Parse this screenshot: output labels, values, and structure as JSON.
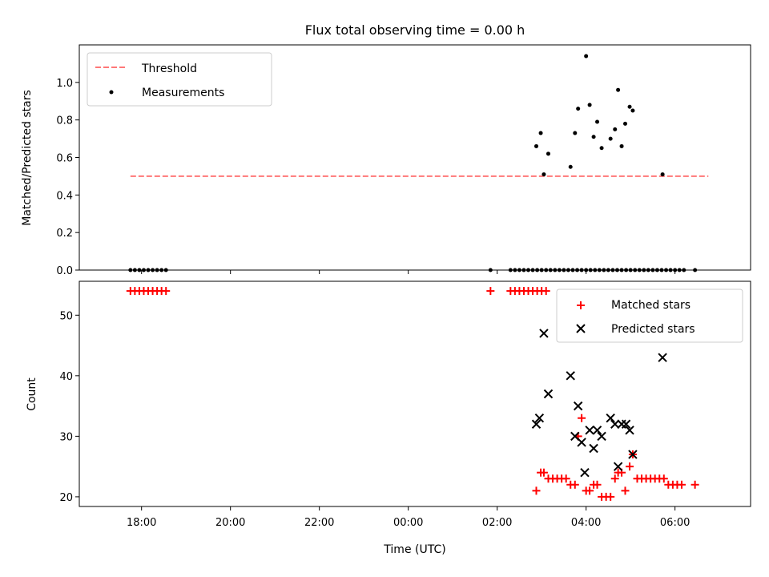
{
  "chart_data": [
    {
      "type": "scatter",
      "title": "Flux total observing time = 0.00 h",
      "xlabel": "",
      "ylabel": "Matched/Predicted stars",
      "x_unit": "hours",
      "xlim": [
        -1.4,
        13.7
      ],
      "ylim": [
        0,
        1.2
      ],
      "yticks": [
        0.0,
        0.2,
        0.4,
        0.6,
        0.8,
        1.0
      ],
      "ytick_labels": [
        "0.0",
        "0.2",
        "0.4",
        "0.6",
        "0.8",
        "1.0"
      ],
      "legend_position": "upper left",
      "legend": [
        "Threshold",
        "Measurements"
      ],
      "threshold": {
        "name": "Threshold",
        "value": 0.5,
        "x_range": [
          -0.25,
          12.75
        ],
        "color": "#ff7777",
        "style": "dashed"
      },
      "series": [
        {
          "name": "Measurements",
          "color": "#000000",
          "x": [
            -0.25,
            -0.15,
            -0.05,
            0.05,
            0.15,
            0.25,
            0.35,
            0.45,
            0.55,
            7.85,
            8.3,
            8.4,
            8.5,
            8.6,
            8.7,
            8.8,
            8.9,
            9.0,
            9.1,
            9.2,
            9.3,
            9.4,
            9.5,
            9.6,
            9.7,
            9.8,
            9.9,
            10.0,
            10.1,
            10.2,
            10.3,
            10.4,
            10.5,
            10.6,
            10.7,
            10.8,
            10.9,
            11.0,
            11.1,
            11.2,
            11.3,
            11.4,
            11.5,
            11.6,
            11.7,
            11.8,
            11.9,
            12.0,
            12.1,
            12.2,
            12.45,
            8.88,
            8.98,
            9.05,
            9.15,
            9.65,
            9.75,
            9.82,
            10.0,
            10.08,
            10.17,
            10.25,
            10.35,
            10.55,
            10.65,
            10.72,
            10.8,
            10.88,
            10.98,
            11.05,
            11.72
          ],
          "y": [
            0,
            0,
            0,
            0,
            0,
            0,
            0,
            0,
            0,
            0,
            0,
            0,
            0,
            0,
            0,
            0,
            0,
            0,
            0,
            0,
            0,
            0,
            0,
            0,
            0,
            0,
            0,
            0,
            0,
            0,
            0,
            0,
            0,
            0,
            0,
            0,
            0,
            0,
            0,
            0,
            0,
            0,
            0,
            0,
            0,
            0,
            0,
            0,
            0,
            0,
            0,
            0.66,
            0.73,
            0.51,
            0.62,
            0.55,
            0.73,
            0.86,
            1.14,
            0.88,
            0.71,
            0.79,
            0.65,
            0.7,
            0.75,
            0.96,
            0.66,
            0.78,
            0.87,
            0.85,
            0.51
          ]
        }
      ]
    },
    {
      "type": "scatter",
      "title": "",
      "xlabel": "Time (UTC)",
      "ylabel": "Count",
      "x_unit": "hours",
      "xlim": [
        -1.4,
        13.7
      ],
      "ylim": [
        18.4,
        55.6
      ],
      "yticks": [
        20,
        30,
        40,
        50
      ],
      "ytick_labels": [
        "20",
        "30",
        "40",
        "50"
      ],
      "xticks": [
        0,
        2,
        4,
        6,
        8,
        10,
        12
      ],
      "xtick_labels": [
        "18:00",
        "20:00",
        "22:00",
        "00:00",
        "02:00",
        "04:00",
        "06:00"
      ],
      "legend_position": "upper right",
      "legend": [
        "Matched stars",
        "Predicted stars"
      ],
      "series": [
        {
          "name": "Matched stars",
          "marker": "+",
          "color": "#ff0000",
          "x": [
            -0.25,
            -0.15,
            -0.05,
            0.05,
            0.15,
            0.25,
            0.35,
            0.45,
            0.55,
            7.85,
            8.3,
            8.4,
            8.5,
            8.6,
            8.7,
            8.8,
            8.9,
            9.0,
            9.1,
            8.88,
            8.98,
            9.05,
            9.15,
            9.25,
            9.35,
            9.45,
            9.55,
            9.65,
            9.75,
            9.82,
            9.9,
            10.0,
            10.08,
            10.17,
            10.25,
            10.35,
            10.45,
            10.55,
            10.65,
            10.72,
            10.8,
            10.88,
            10.98,
            11.05,
            11.15,
            11.25,
            11.35,
            11.45,
            11.55,
            11.65,
            11.75,
            11.85,
            11.95,
            12.05,
            12.15,
            12.45
          ],
          "y": [
            54,
            54,
            54,
            54,
            54,
            54,
            54,
            54,
            54,
            54,
            54,
            54,
            54,
            54,
            54,
            54,
            54,
            54,
            54,
            21,
            24,
            24,
            23,
            23,
            23,
            23,
            23,
            22,
            22,
            30,
            33,
            21,
            21,
            22,
            22,
            20,
            20,
            20,
            23,
            24,
            24,
            21,
            25,
            27,
            23,
            23,
            23,
            23,
            23,
            23,
            23,
            22,
            22,
            22,
            22,
            22
          ]
        },
        {
          "name": "Predicted stars",
          "marker": "x",
          "color": "#000000",
          "x": [
            8.88,
            8.95,
            9.05,
            9.15,
            9.65,
            9.75,
            9.82,
            9.9,
            9.97,
            10.08,
            10.17,
            10.25,
            10.35,
            10.55,
            10.65,
            10.72,
            10.8,
            10.9,
            10.98,
            11.05,
            11.72
          ],
          "y": [
            32,
            33,
            47,
            37,
            40,
            30,
            35,
            29,
            24,
            31,
            28,
            31,
            30,
            33,
            32,
            25,
            32,
            32,
            31,
            27,
            43
          ]
        }
      ]
    }
  ]
}
